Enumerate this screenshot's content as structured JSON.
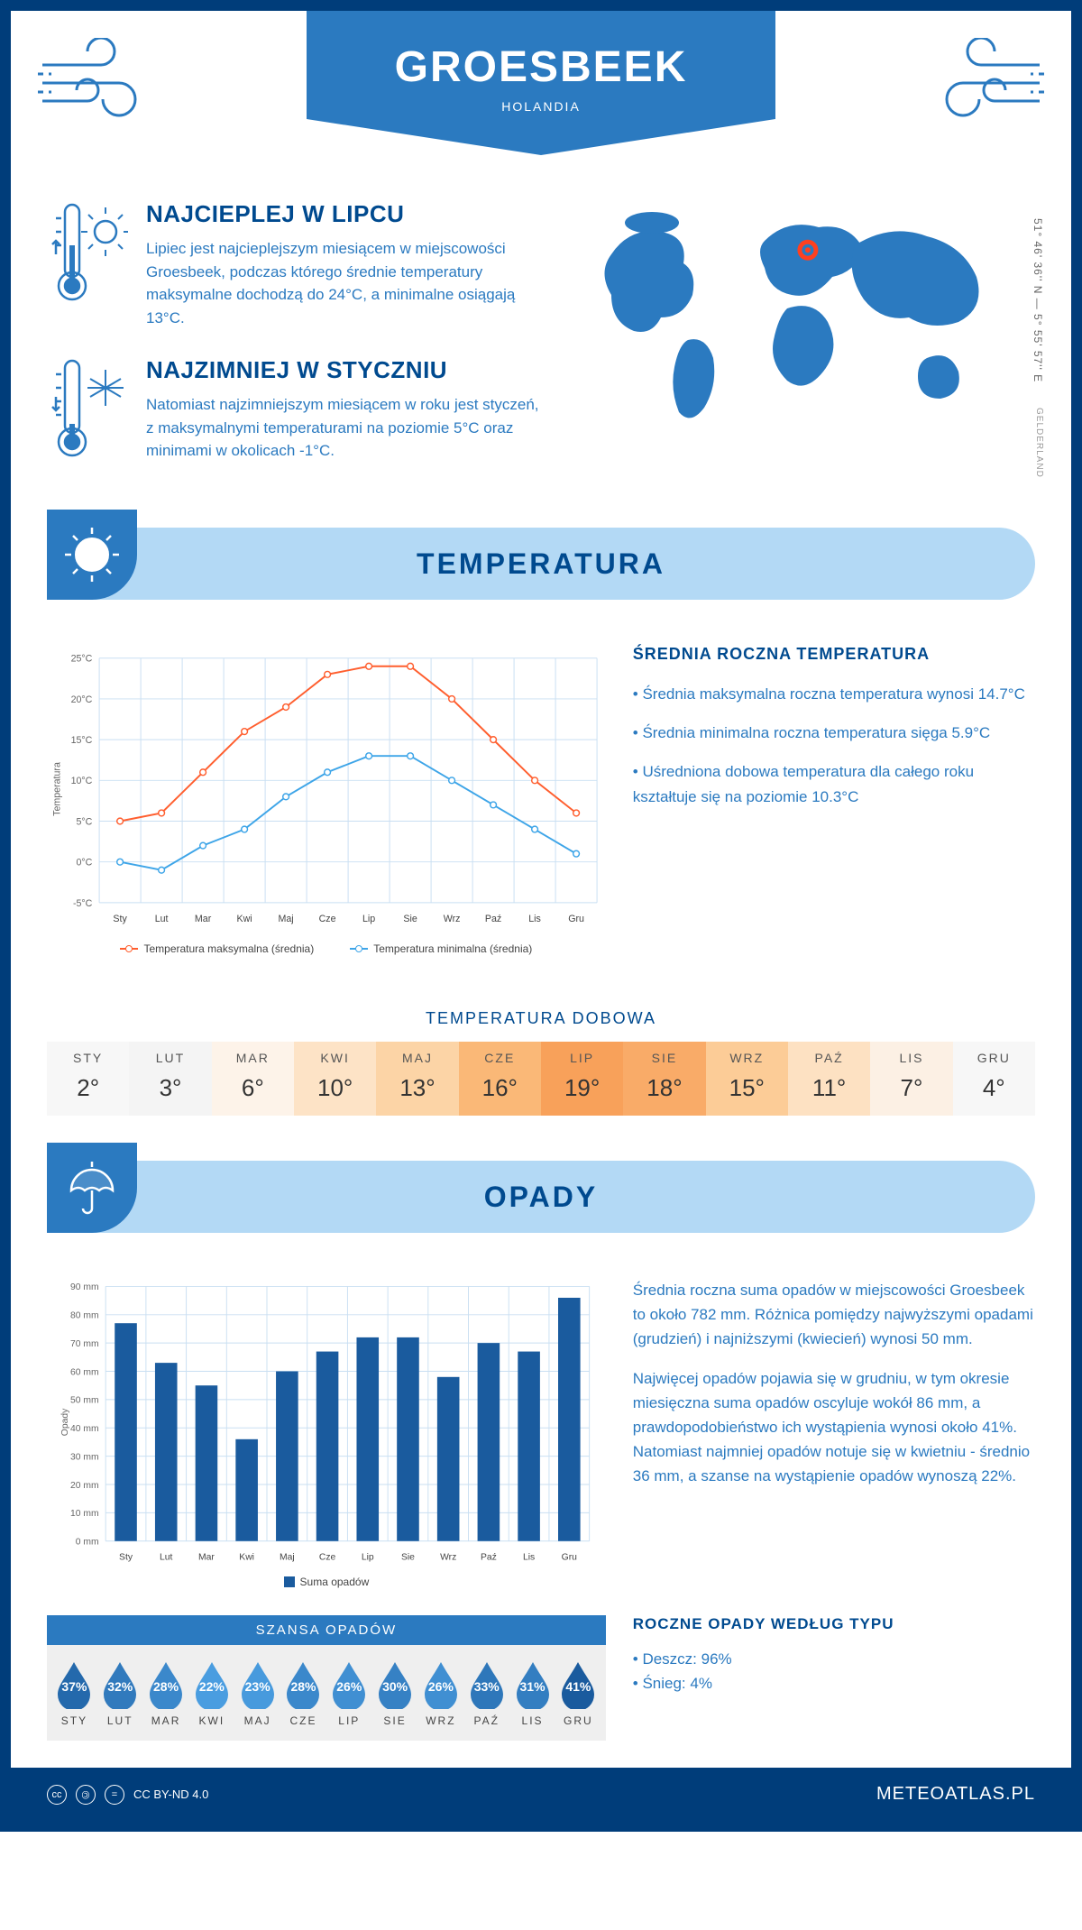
{
  "header": {
    "city": "GROESBEEK",
    "country": "HOLANDIA"
  },
  "intro": {
    "hot": {
      "title": "NAJCIEPLEJ W LIPCU",
      "text": "Lipiec jest najcieplejszym miesiącem w miejscowości Groesbeek, podczas którego średnie temperatury maksymalne dochodzą do 24°C, a minimalne osiągają 13°C."
    },
    "cold": {
      "title": "NAJZIMNIEJ W STYCZNIU",
      "text": "Natomiast najzimniejszym miesiącem w roku jest styczeń, z maksymalnymi temperaturami na poziomie 5°C oraz minimami w okolicach -1°C."
    },
    "coords": "51° 46' 36'' N — 5° 55' 57'' E",
    "region": "GELDERLAND",
    "marker": {
      "lon": 5.93,
      "lat": 51.78
    }
  },
  "months": [
    "Sty",
    "Lut",
    "Mar",
    "Kwi",
    "Maj",
    "Cze",
    "Lip",
    "Sie",
    "Wrz",
    "Paź",
    "Lis",
    "Gru"
  ],
  "months_upper": [
    "STY",
    "LUT",
    "MAR",
    "KWI",
    "MAJ",
    "CZE",
    "LIP",
    "SIE",
    "WRZ",
    "PAŹ",
    "LIS",
    "GRU"
  ],
  "temp_section": {
    "title": "TEMPERATURA"
  },
  "temp_chart": {
    "type": "line",
    "ylabel": "Temperatura",
    "ylim": [
      -5,
      25
    ],
    "ytick_step": 5,
    "ytick_suffix": "°C",
    "grid_color": "#c9dff2",
    "background_color": "#ffffff",
    "label_fontsize": 11,
    "max": {
      "values": [
        5,
        6,
        11,
        16,
        19,
        23,
        24,
        24,
        20,
        15,
        10,
        6
      ],
      "color": "#ff5e2e",
      "style": "line-circle",
      "label": "Temperatura maksymalna (średnia)"
    },
    "min": {
      "values": [
        0,
        -1,
        2,
        4,
        8,
        11,
        13,
        13,
        10,
        7,
        4,
        1
      ],
      "color": "#3ea5e8",
      "style": "line-circle",
      "label": "Temperatura minimalna (średnia)"
    }
  },
  "temp_desc": {
    "title": "ŚREDNIA ROCZNA TEMPERATURA",
    "p1": "• Średnia maksymalna roczna temperatura wynosi 14.7°C",
    "p2": "• Średnia minimalna roczna temperatura sięga 5.9°C",
    "p3": "• Uśredniona dobowa temperatura dla całego roku kształtuje się na poziomie 10.3°C"
  },
  "daily": {
    "title": "TEMPERATURA DOBOWA",
    "values": [
      2,
      3,
      6,
      10,
      13,
      16,
      19,
      18,
      15,
      11,
      7,
      4
    ],
    "colors": [
      "#f7f7f7",
      "#f4f4f4",
      "#fdf3e9",
      "#fde3c6",
      "#fcd4a6",
      "#fab877",
      "#f8a15a",
      "#f9ab68",
      "#fccc97",
      "#fde1c2",
      "#fcf0e4",
      "#f7f7f7"
    ]
  },
  "precip_section": {
    "title": "OPADY"
  },
  "precip_chart": {
    "type": "bar",
    "ylabel": "Opady",
    "ylim": [
      0,
      90
    ],
    "ytick_step": 10,
    "ytick_suffix": " mm",
    "grid_color": "#c9dff2",
    "bar_color": "#1a5b9e",
    "bar_width": 0.55,
    "values": [
      77,
      63,
      55,
      36,
      60,
      67,
      72,
      72,
      58,
      70,
      67,
      86
    ],
    "legend": "Suma opadów"
  },
  "precip_desc": {
    "p1": "Średnia roczna suma opadów w miejscowości Groesbeek to około 782 mm. Różnica pomiędzy najwyższymi opadami (grudzień) i najniższymi (kwiecień) wynosi 50 mm.",
    "p2": "Najwięcej opadów pojawia się w grudniu, w tym okresie miesięczna suma opadów oscyluje wokół 86 mm, a prawdopodobieństwo ich wystąpienia wynosi około 41%. Natomiast najmniej opadów notuje się w kwietniu - średnio 36 mm, a szanse na wystąpienie opadów wynoszą 22%."
  },
  "chance": {
    "title": "SZANSA OPADÓW",
    "values": [
      37,
      32,
      28,
      22,
      23,
      28,
      26,
      30,
      26,
      33,
      31,
      41
    ],
    "drop_fill": "#1a5b9e",
    "drop_fill_min": "#4a9de0"
  },
  "precip_type": {
    "title": "ROCZNE OPADY WEDŁUG TYPU",
    "rain": "• Deszcz: 96%",
    "snow": "• Śnieg: 4%"
  },
  "footer": {
    "license": "CC BY-ND 4.0",
    "site": "METEOATLAS.PL"
  },
  "colors": {
    "primary": "#004a8f",
    "accent": "#2b7ac0",
    "light": "#b3d9f5",
    "border": "#003d7a"
  }
}
